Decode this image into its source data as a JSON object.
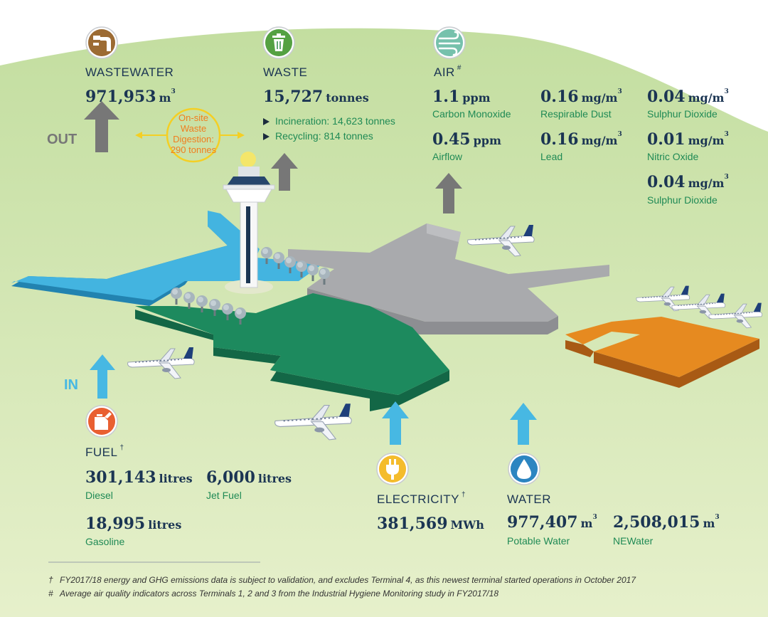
{
  "colors": {
    "navy": "#1b3553",
    "green_label": "#1f8a55",
    "out_arrow": "#777777",
    "in_arrow": "#47b8e3",
    "digestion": "#f07e1e",
    "digestion_ring": "#f4cf24"
  },
  "flows": {
    "out_label": "OUT",
    "in_label": "IN"
  },
  "wastewater": {
    "icon": "wastewater-pipe-icon",
    "title": "WASTEWATER",
    "value": "971,953",
    "unit": "m",
    "unit_sup": "3"
  },
  "digestion": {
    "line1": "On-site",
    "line2": "Waste",
    "line3": "Digestion:",
    "line4": "290 tonnes"
  },
  "waste": {
    "icon": "trash-bin-icon",
    "title": "WASTE",
    "value": "15,727",
    "unit": "tonnes",
    "items": [
      "Incineration: 14,623 tonnes",
      "Recycling: 814 tonnes"
    ]
  },
  "air": {
    "icon": "wind-icon",
    "title": "AIR",
    "title_mark": "#",
    "metrics": [
      {
        "value": "1.1",
        "unit": "ppm",
        "unit_sup": "",
        "label": "Carbon Monoxide"
      },
      {
        "value": "0.45",
        "unit": "ppm",
        "unit_sup": "",
        "label": "Airflow"
      },
      {
        "value": "0.16",
        "unit": "mg/m",
        "unit_sup": "3",
        "label": "Respirable Dust"
      },
      {
        "value": "0.16",
        "unit": "mg/m",
        "unit_sup": "3",
        "label": "Lead"
      },
      {
        "value": "0.04",
        "unit": "mg/m",
        "unit_sup": "3",
        "label": "Sulphur Dioxide"
      },
      {
        "value": "0.01",
        "unit": "mg/m",
        "unit_sup": "3",
        "label": "Nitric Oxide"
      },
      {
        "value": "0.04",
        "unit": "mg/m",
        "unit_sup": "3",
        "label": "Sulphur Dioxide"
      }
    ]
  },
  "fuel": {
    "icon": "fuel-can-icon",
    "title": "FUEL",
    "title_mark": "†",
    "items": [
      {
        "value": "301,143",
        "unit": "litres",
        "label": "Diesel"
      },
      {
        "value": "6,000",
        "unit": "litres",
        "label": "Jet Fuel"
      },
      {
        "value": "18,995",
        "unit": "litres",
        "label": "Gasoline"
      }
    ]
  },
  "electricity": {
    "icon": "plug-icon",
    "title": "ELECTRICITY",
    "title_mark": "†",
    "value": "381,569",
    "unit": "MWh"
  },
  "water": {
    "icon": "water-drop-icon",
    "title": "WATER",
    "items": [
      {
        "value": "977,407",
        "unit": "m",
        "unit_sup": "3",
        "label": "Potable Water"
      },
      {
        "value": "2,508,015",
        "unit": "m",
        "unit_sup": "3",
        "label": "NEWater"
      }
    ]
  },
  "footnotes": [
    {
      "mark": "†",
      "text": "FY2017/18 energy and GHG emissions data is subject to validation, and excludes Terminal 4, as this newest terminal started operations in October 2017"
    },
    {
      "mark": "#",
      "text": "Average air quality indicators across Terminals 1, 2 and 3 from the Industrial Hygiene Monitoring study in FY2017/18"
    }
  ]
}
